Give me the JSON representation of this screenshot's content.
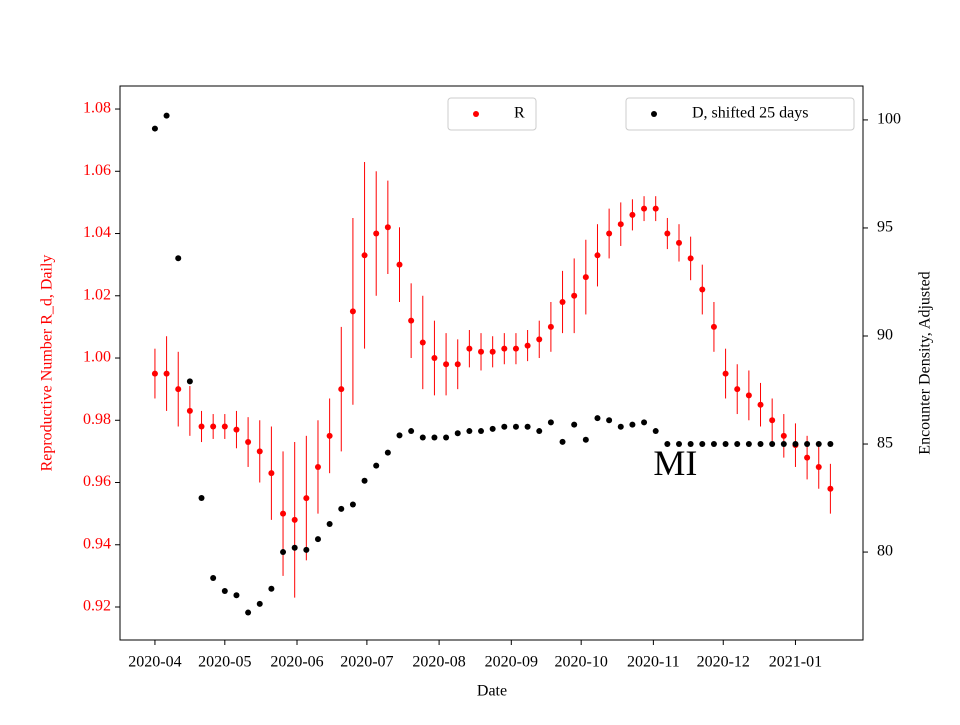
{
  "chart_data": {
    "type": "scatter",
    "xlabel": "Date",
    "ylabel": "Reproductive Number R_d, Daily",
    "y2label": "Encounter Density, Adjusted",
    "annotation": {
      "text": "MI",
      "x": "2020-11-01",
      "y": 0.965
    },
    "x": [
      "2020-04-01",
      "2020-04-06",
      "2020-04-11",
      "2020-04-16",
      "2020-04-21",
      "2020-04-26",
      "2020-05-01",
      "2020-05-06",
      "2020-05-11",
      "2020-05-16",
      "2020-05-21",
      "2020-05-26",
      "2020-05-31",
      "2020-06-05",
      "2020-06-10",
      "2020-06-15",
      "2020-06-20",
      "2020-06-25",
      "2020-06-30",
      "2020-07-05",
      "2020-07-10",
      "2020-07-15",
      "2020-07-20",
      "2020-07-25",
      "2020-07-30",
      "2020-08-04",
      "2020-08-09",
      "2020-08-14",
      "2020-08-19",
      "2020-08-24",
      "2020-08-29",
      "2020-09-03",
      "2020-09-08",
      "2020-09-13",
      "2020-09-18",
      "2020-09-23",
      "2020-09-28",
      "2020-10-03",
      "2020-10-08",
      "2020-10-13",
      "2020-10-18",
      "2020-10-23",
      "2020-10-28",
      "2020-11-02",
      "2020-11-07",
      "2020-11-12",
      "2020-11-17",
      "2020-11-22",
      "2020-11-27",
      "2020-12-02",
      "2020-12-07",
      "2020-12-12",
      "2020-12-17",
      "2020-12-22",
      "2020-12-27",
      "2021-01-01",
      "2021-01-06",
      "2021-01-11",
      "2021-01-16"
    ],
    "series": [
      {
        "name": "R",
        "color": "#ff0000",
        "axis": "y",
        "values": [
          0.995,
          0.995,
          0.99,
          0.983,
          0.978,
          0.978,
          0.978,
          0.977,
          0.973,
          0.97,
          0.963,
          0.95,
          0.948,
          0.955,
          0.965,
          0.975,
          0.99,
          1.015,
          1.033,
          1.04,
          1.042,
          1.03,
          1.012,
          1.005,
          1.0,
          0.998,
          0.998,
          1.003,
          1.002,
          1.002,
          1.003,
          1.003,
          1.004,
          1.006,
          1.01,
          1.018,
          1.02,
          1.026,
          1.033,
          1.04,
          1.043,
          1.046,
          1.048,
          1.048,
          1.04,
          1.037,
          1.032,
          1.022,
          1.01,
          0.995,
          0.99,
          0.988,
          0.985,
          0.98,
          0.975,
          0.972,
          0.968,
          0.965,
          0.958
        ],
        "errors": [
          0.008,
          0.012,
          0.012,
          0.008,
          0.005,
          0.004,
          0.004,
          0.006,
          0.008,
          0.01,
          0.015,
          0.02,
          0.025,
          0.02,
          0.015,
          0.012,
          0.02,
          0.03,
          0.03,
          0.02,
          0.015,
          0.012,
          0.012,
          0.015,
          0.012,
          0.01,
          0.008,
          0.006,
          0.006,
          0.005,
          0.005,
          0.005,
          0.005,
          0.006,
          0.008,
          0.01,
          0.012,
          0.012,
          0.01,
          0.008,
          0.007,
          0.005,
          0.004,
          0.004,
          0.005,
          0.006,
          0.007,
          0.008,
          0.008,
          0.008,
          0.008,
          0.008,
          0.007,
          0.007,
          0.007,
          0.007,
          0.007,
          0.007,
          0.008
        ]
      },
      {
        "name": "D, shifted 25 days",
        "color": "#000000",
        "axis": "y2",
        "values": [
          99.6,
          100.2,
          93.6,
          87.9,
          82.5,
          78.8,
          78.2,
          78.0,
          77.2,
          77.6,
          78.3,
          80.0,
          80.2,
          80.1,
          80.6,
          81.3,
          82.0,
          82.2,
          83.3,
          84.0,
          84.6,
          85.4,
          85.6,
          85.3,
          85.3,
          85.3,
          85.5,
          85.6,
          85.6,
          85.7,
          85.8,
          85.8,
          85.8,
          85.6,
          86.0,
          85.1,
          85.9,
          85.2,
          86.2,
          86.1,
          85.8,
          85.9,
          86.0,
          85.6,
          85.0,
          85.0,
          85.0,
          85.0,
          85.0,
          85.0,
          85.0,
          85.0,
          85.0,
          85.0,
          85.0,
          85.0,
          85.0,
          85.0,
          85.0
        ]
      }
    ],
    "xlim": [
      "2020-03-17",
      "2021-01-30"
    ],
    "xticks": [
      "2020-04",
      "2020-05",
      "2020-06",
      "2020-07",
      "2020-08",
      "2020-09",
      "2020-10",
      "2020-11",
      "2020-12",
      "2021-01"
    ],
    "ylim": [
      0.9094,
      1.0874
    ],
    "yticks": [
      {
        "value": 0.92,
        "label": "0.92"
      },
      {
        "value": 0.94,
        "label": "0.94"
      },
      {
        "value": 0.96,
        "label": "0.96"
      },
      {
        "value": 0.98,
        "label": "0.98"
      },
      {
        "value": 1.0,
        "label": "1.00"
      },
      {
        "value": 1.02,
        "label": "1.02"
      },
      {
        "value": 1.04,
        "label": "1.04"
      },
      {
        "value": 1.06,
        "label": "1.06"
      },
      {
        "value": 1.08,
        "label": "1.08"
      }
    ],
    "y2lim": [
      75.93,
      101.57
    ],
    "y2ticks": [
      80,
      85,
      90,
      95,
      100
    ],
    "legend": [
      "upper center",
      "upper right"
    ]
  }
}
